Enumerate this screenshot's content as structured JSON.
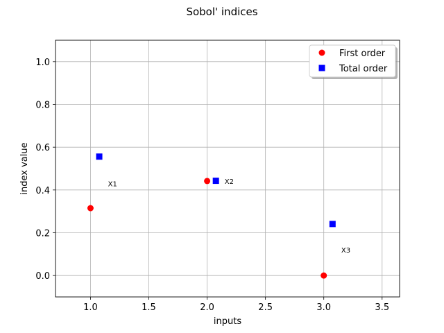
{
  "chart_data": {
    "type": "scatter",
    "title": "Sobol' indices",
    "xlabel": "inputs",
    "ylabel": "index value",
    "xlim": [
      0.7,
      3.65
    ],
    "ylim": [
      -0.1,
      1.1
    ],
    "xticks": [
      "1.0",
      "1.5",
      "2.0",
      "2.5",
      "3.0",
      "3.5"
    ],
    "yticks": [
      "0.0",
      "0.2",
      "0.4",
      "0.6",
      "0.8",
      "1.0"
    ],
    "grid": true,
    "legend_position": "top-right",
    "series": [
      {
        "name": "First order",
        "color": "#ff0000",
        "marker": "circle",
        "x": [
          1.0,
          2.0,
          3.0
        ],
        "y": [
          0.315,
          0.442,
          0.0
        ]
      },
      {
        "name": "Total order",
        "color": "#0000ff",
        "marker": "square",
        "x": [
          1.075,
          2.075,
          3.075
        ],
        "y": [
          0.556,
          0.443,
          0.241
        ]
      }
    ],
    "annotations": [
      {
        "text": "X1",
        "x": 1.15,
        "y": 0.43
      },
      {
        "text": "X2",
        "x": 2.15,
        "y": 0.442
      },
      {
        "text": "X3",
        "x": 3.15,
        "y": 0.12
      }
    ]
  }
}
